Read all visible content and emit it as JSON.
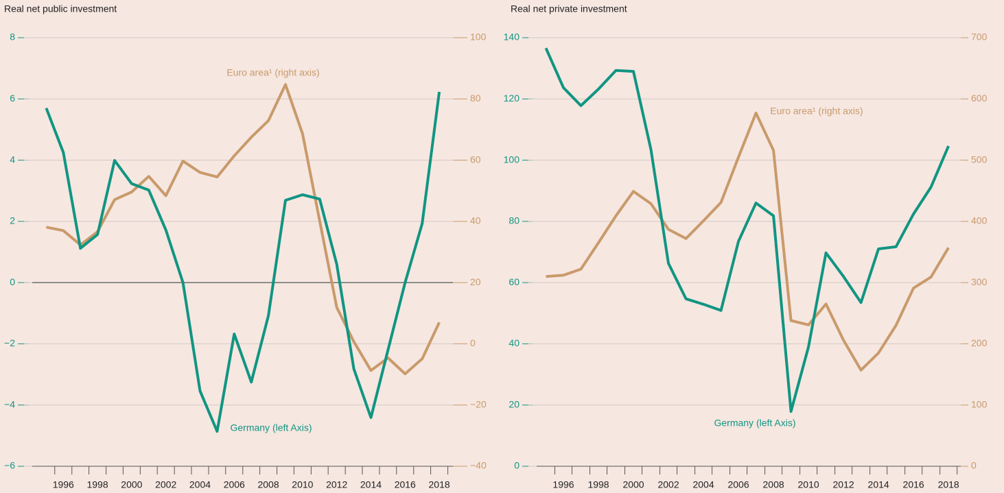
{
  "chart_data": [
    {
      "type": "line",
      "title": "Real net public investment",
      "x": [
        1995,
        1996,
        1997,
        1998,
        1999,
        2000,
        2001,
        2002,
        2003,
        2004,
        2005,
        2006,
        2007,
        2008,
        2009,
        2010,
        2011,
        2012,
        2013,
        2014,
        2015,
        2016,
        2017,
        2018
      ],
      "xlim": [
        1993.7,
        2018.8
      ],
      "xticks": [
        1996,
        1998,
        2000,
        2002,
        2004,
        2006,
        2008,
        2010,
        2012,
        2014,
        2016,
        2018
      ],
      "ylim": [
        -6,
        8
      ],
      "yticks": [
        {
          "value": -6,
          "label": "−6"
        },
        {
          "value": -4,
          "label": "−4"
        },
        {
          "value": -2,
          "label": "−2"
        },
        0,
        2,
        4,
        6,
        8
      ],
      "y2lim": [
        -40,
        100
      ],
      "y2ticks": [
        {
          "value": -40,
          "label": "−40"
        },
        {
          "value": -20,
          "label": "−20"
        },
        0,
        20,
        40,
        60,
        80,
        100
      ],
      "grid": true,
      "zero_line": true,
      "series": [
        {
          "name": "Germany (left Axis)",
          "color": "#119582",
          "axis": "y",
          "values": [
            5.7,
            4.25,
            1.12,
            1.57,
            3.99,
            3.23,
            3.02,
            1.72,
            0,
            -3.54,
            -4.86,
            -1.68,
            -3.25,
            -1.08,
            2.69,
            2.87,
            2.73,
            0.6,
            -2.82,
            -4.41,
            -2.2,
            0,
            1.93,
            6.23
          ]
        },
        {
          "name": "Euro area¹ (right axis)",
          "color": "#c99a6b",
          "axis": "y2",
          "values": [
            38.1,
            37,
            32.3,
            36.6,
            47.1,
            49.6,
            54.7,
            48.4,
            59.7,
            56,
            54.5,
            61.4,
            67.5,
            72.9,
            84.7,
            68.6,
            40.2,
            11.9,
            0.7,
            -8.7,
            -4.6,
            -9.8,
            -4.9,
            7
          ]
        }
      ]
    },
    {
      "type": "line",
      "title": "Real net private investment",
      "x": [
        1995,
        1996,
        1997,
        1998,
        1999,
        2000,
        2001,
        2002,
        2003,
        2004,
        2005,
        2006,
        2007,
        2008,
        2009,
        2010,
        2011,
        2012,
        2013,
        2014,
        2015,
        2016,
        2017,
        2018
      ],
      "xlim": [
        1994,
        2018.7
      ],
      "xticks": [
        1996,
        1998,
        2000,
        2002,
        2004,
        2006,
        2008,
        2010,
        2012,
        2014,
        2016,
        2018
      ],
      "ylim": [
        0,
        140
      ],
      "yticks": [
        0,
        20,
        40,
        60,
        80,
        100,
        120,
        140
      ],
      "y2lim": [
        0,
        700
      ],
      "y2ticks": [
        0,
        100,
        200,
        300,
        400,
        500,
        600,
        700
      ],
      "grid": true,
      "zero_line": false,
      "series": [
        {
          "name": "Germany (left Axis)",
          "color": "#119582",
          "axis": "y",
          "values": [
            136.6,
            123.7,
            117.8,
            123.2,
            129.3,
            129,
            103.5,
            66.3,
            54.7,
            52.9,
            50.9,
            73.5,
            86,
            81.8,
            17.9,
            39,
            69.7,
            62,
            53.5,
            71,
            71.7,
            82.4,
            91.2,
            104.6
          ]
        },
        {
          "name": "Euro area¹ (right axis)",
          "color": "#c99a6b",
          "axis": "y2",
          "values": [
            310,
            312,
            322,
            365,
            409,
            449,
            429,
            387,
            372,
            401,
            431,
            505,
            577,
            516,
            238,
            231,
            265,
            206,
            157,
            185,
            230,
            291,
            309,
            357
          ]
        }
      ]
    }
  ]
}
